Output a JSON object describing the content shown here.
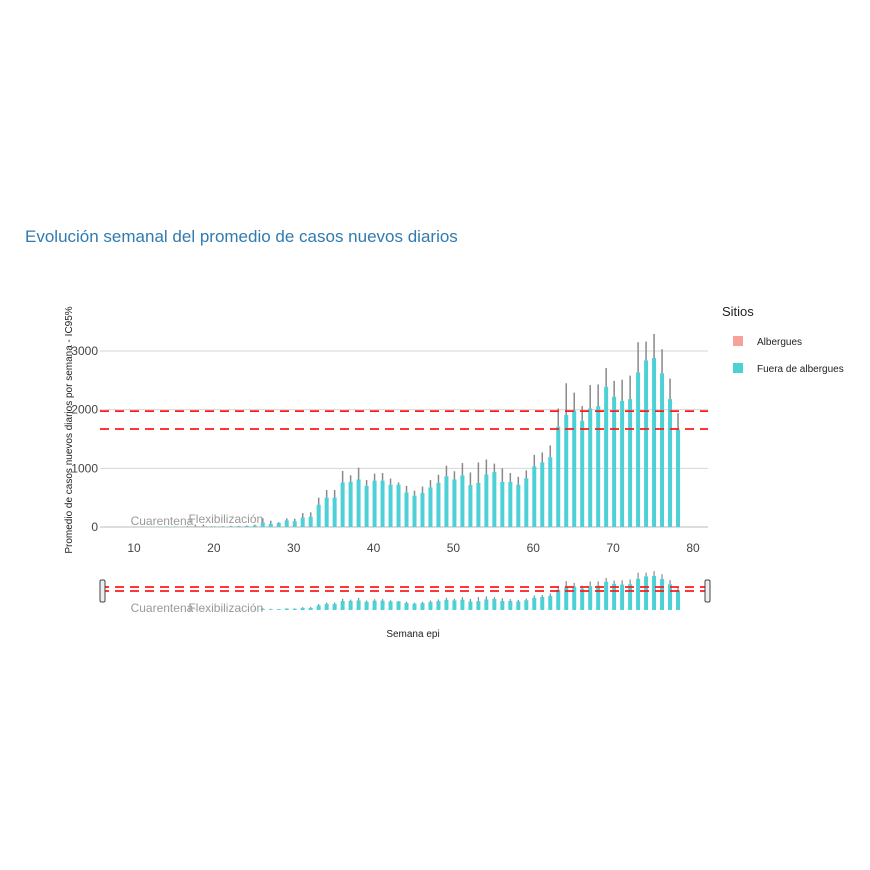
{
  "chart_data": {
    "type": "bar",
    "title": "Evolución semanal del promedio de casos nuevos diarios",
    "xlabel": "Semana epi",
    "ylabel": "Promedio de casos nuevos diarios por semana - IC95%",
    "xlim": [
      5.75,
      82
    ],
    "ylim": [
      0,
      3350
    ],
    "xticks": [
      10,
      20,
      30,
      40,
      50,
      60,
      70,
      80
    ],
    "yticks": [
      0,
      1000,
      2000,
      3000
    ],
    "grid": true,
    "legend": {
      "title": "Sitios",
      "placement": "right",
      "entries": [
        "Albergues",
        "Fuera de albergues"
      ]
    },
    "colors": {
      "Albergues": "#f8a09a",
      "Fuera de albergues": "#4dd0d6",
      "error": "#888888",
      "threshold": "#ff1a1a"
    },
    "thresholds": [
      1975,
      1670
    ],
    "annotations": [
      {
        "text": "Cuarentena",
        "x": 13.5
      },
      {
        "text": "Flexibilización",
        "x": 21.5
      }
    ],
    "x": [
      10,
      11,
      12,
      13,
      14,
      15,
      16,
      17,
      18,
      19,
      20,
      21,
      22,
      23,
      24,
      25,
      26,
      27,
      28,
      29,
      30,
      31,
      32,
      33,
      34,
      35,
      36,
      37,
      38,
      39,
      40,
      41,
      42,
      43,
      44,
      45,
      46,
      47,
      48,
      49,
      50,
      51,
      52,
      53,
      54,
      55,
      56,
      57,
      58,
      59,
      60,
      61,
      62,
      63,
      64,
      65,
      66,
      67,
      68,
      69,
      70,
      71,
      72,
      73,
      74,
      75,
      76,
      77,
      78
    ],
    "series": [
      {
        "name": "Albergues",
        "values": [
          0,
          0,
          0,
          0,
          0,
          0,
          0,
          8,
          15,
          15,
          6,
          5,
          3,
          3,
          2,
          2,
          2,
          2,
          2,
          2,
          2,
          2,
          2,
          2,
          2,
          2,
          2,
          2,
          2,
          2,
          2,
          2,
          2,
          2,
          2,
          2,
          2,
          2,
          2,
          2,
          2,
          2,
          2,
          2,
          2,
          2,
          2,
          2,
          2,
          2,
          2,
          2,
          2,
          2,
          2,
          2,
          2,
          2,
          2,
          2,
          2,
          2,
          2,
          2,
          2,
          2,
          2,
          2,
          2
        ],
        "upper": [
          0,
          0,
          0,
          0,
          0,
          0,
          0,
          20,
          40,
          40,
          15,
          10,
          6,
          6,
          4,
          4,
          4,
          4,
          4,
          4,
          4,
          4,
          4,
          4,
          4,
          4,
          4,
          4,
          4,
          4,
          4,
          4,
          4,
          4,
          4,
          4,
          4,
          4,
          4,
          4,
          4,
          4,
          4,
          4,
          4,
          4,
          4,
          4,
          4,
          4,
          4,
          4,
          4,
          4,
          4,
          4,
          4,
          4,
          4,
          4,
          4,
          4,
          4,
          4,
          4,
          4,
          4,
          4,
          4
        ]
      },
      {
        "name": "Fuera de albergues",
        "values": [
          2,
          3,
          3,
          5,
          6,
          6,
          6,
          6,
          8,
          8,
          8,
          10,
          12,
          14,
          18,
          25,
          80,
          55,
          68,
          113,
          100,
          164,
          175,
          380,
          500,
          500,
          760,
          770,
          810,
          700,
          790,
          790,
          720,
          720,
          590,
          534,
          580,
          675,
          750,
          865,
          810,
          880,
          715,
          750,
          895,
          940,
          770,
          770,
          720,
          830,
          1035,
          1100,
          1190,
          1710,
          1910,
          1985,
          1810,
          2020,
          2060,
          2390,
          2220,
          2150,
          2180,
          2635,
          2840,
          2880,
          2620,
          2180,
          1660
        ],
        "upper": [
          4,
          5,
          5,
          8,
          9,
          9,
          9,
          9,
          12,
          12,
          12,
          15,
          18,
          20,
          25,
          40,
          150,
          107,
          80,
          147,
          141,
          237,
          250,
          500,
          630,
          630,
          955,
          880,
          1010,
          800,
          910,
          920,
          825,
          760,
          700,
          620,
          690,
          800,
          890,
          1045,
          950,
          1090,
          930,
          1100,
          1150,
          1080,
          1000,
          920,
          855,
          965,
          1230,
          1270,
          1390,
          2020,
          2450,
          2290,
          2060,
          2420,
          2430,
          2710,
          2490,
          2510,
          2580,
          3150,
          3160,
          3290,
          3030,
          2530,
          1940
        ]
      }
    ]
  }
}
